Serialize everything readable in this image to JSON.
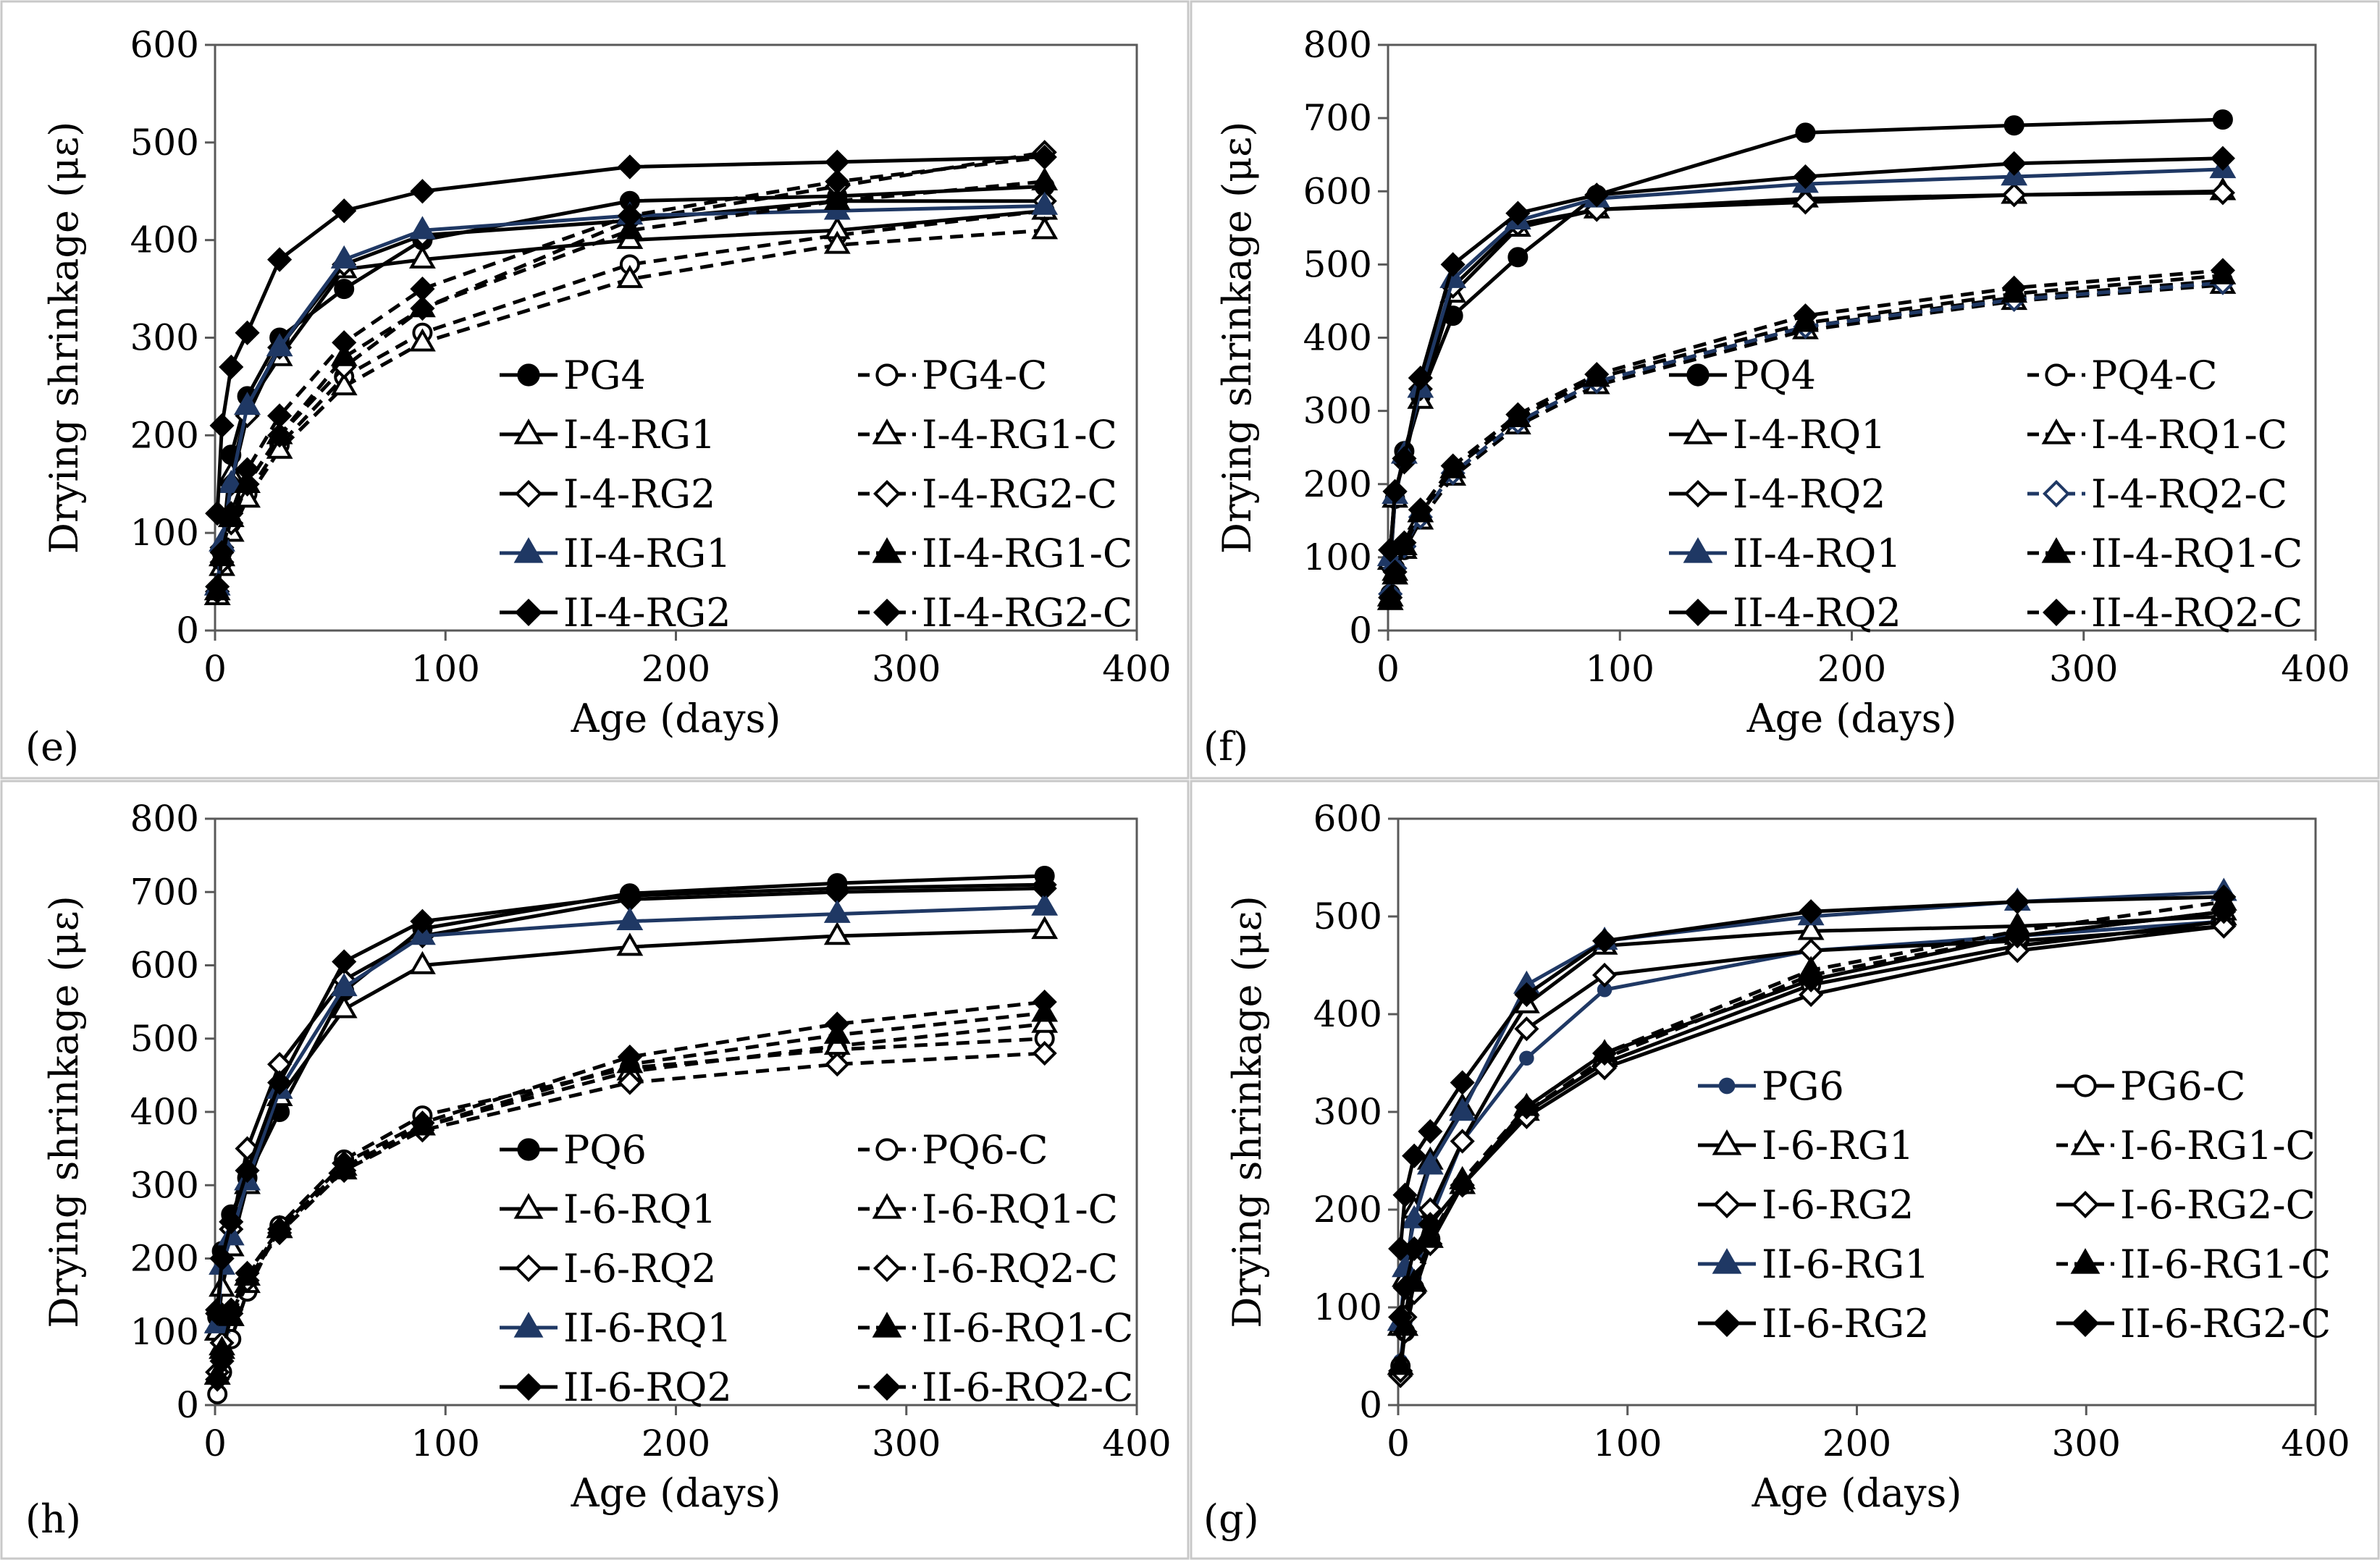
{
  "figure": {
    "panel_border_color": "#c8c8c8",
    "axis_color": "#595959",
    "navy": "#1f3864",
    "black": "#000000"
  },
  "chart_data": [
    {
      "type": "line",
      "panel_label": "(e)",
      "xlabel": "Age (days)",
      "ylabel": "Drying shrinkage (με)",
      "xlim": [
        0,
        400
      ],
      "ylim": [
        0,
        600
      ],
      "xticks": [
        "0",
        "100",
        "200",
        "300",
        "400"
      ],
      "yticks": [
        "0",
        "100",
        "200",
        "300",
        "400",
        "500",
        "600"
      ],
      "grid": false,
      "legend_position": "lower-right, inside plot",
      "x": [
        1,
        3,
        7,
        14,
        28,
        56,
        90,
        180,
        270,
        360
      ],
      "series": [
        {
          "name": "PG4",
          "marker": "circle",
          "fill": "filled",
          "dash": "solid",
          "color": "#000000",
          "values": [
            40,
            80,
            180,
            240,
            300,
            350,
            400,
            440,
            445,
            455
          ]
        },
        {
          "name": "PG4-C",
          "marker": "circle",
          "fill": "open",
          "dash": "dashed",
          "color": "#000000",
          "values": [
            40,
            70,
            110,
            140,
            190,
            260,
            305,
            375,
            405,
            430
          ]
        },
        {
          "name": "I-4-RG1",
          "marker": "triangle",
          "fill": "open",
          "dash": "solid",
          "color": "#000000",
          "values": [
            35,
            75,
            160,
            230,
            280,
            370,
            380,
            400,
            410,
            430
          ]
        },
        {
          "name": "I-4-RG1-C",
          "marker": "triangle",
          "fill": "open",
          "dash": "dashed",
          "color": "#000000",
          "values": [
            35,
            65,
            100,
            135,
            185,
            250,
            295,
            360,
            395,
            410
          ]
        },
        {
          "name": "I-4-RG2",
          "marker": "diamond",
          "fill": "open",
          "dash": "solid",
          "color": "#000000",
          "values": [
            40,
            85,
            150,
            220,
            290,
            375,
            405,
            420,
            440,
            440
          ]
        },
        {
          "name": "I-4-RG2-C",
          "marker": "diamond",
          "fill": "open",
          "dash": "dashed",
          "color": "#000000",
          "values": [
            40,
            70,
            110,
            150,
            200,
            270,
            330,
            420,
            455,
            490
          ]
        },
        {
          "name": "II-4-RG1",
          "marker": "triangle",
          "fill": "filled",
          "dash": "solid",
          "color": "#1f3864",
          "values": [
            45,
            90,
            150,
            230,
            290,
            380,
            410,
            425,
            430,
            435
          ]
        },
        {
          "name": "II-4-RG1-C",
          "marker": "triangle",
          "fill": "filled",
          "dash": "dashed",
          "color": "#000000",
          "values": [
            40,
            75,
            115,
            150,
            200,
            280,
            330,
            410,
            440,
            460
          ]
        },
        {
          "name": "II-4-RG2",
          "marker": "diamond",
          "fill": "filled",
          "dash": "solid",
          "color": "#000000",
          "values": [
            120,
            210,
            270,
            305,
            380,
            430,
            450,
            475,
            480,
            485
          ]
        },
        {
          "name": "II-4-RG2-C",
          "marker": "diamond",
          "fill": "filled",
          "dash": "dashed",
          "color": "#000000",
          "values": [
            45,
            80,
            120,
            165,
            220,
            295,
            350,
            425,
            460,
            485
          ]
        }
      ]
    },
    {
      "type": "line",
      "panel_label": "(f)",
      "xlabel": "Age (days)",
      "ylabel": "Drying shrinkage (με)",
      "xlim": [
        0,
        400
      ],
      "ylim": [
        0,
        800
      ],
      "xticks": [
        "0",
        "100",
        "200",
        "300",
        "400"
      ],
      "yticks": [
        "0",
        "100",
        "200",
        "300",
        "400",
        "500",
        "600",
        "700",
        "800"
      ],
      "grid": false,
      "legend_position": "lower-right, inside plot",
      "x": [
        1,
        3,
        7,
        14,
        28,
        56,
        90,
        180,
        270,
        360
      ],
      "series": [
        {
          "name": "PQ4",
          "marker": "circle",
          "fill": "filled",
          "dash": "solid",
          "color": "#000000",
          "values": [
            90,
            180,
            245,
            320,
            430,
            510,
            595,
            680,
            690,
            698
          ]
        },
        {
          "name": "PQ4-C",
          "marker": "circle",
          "fill": "open",
          "dash": "dashed",
          "color": "#000000",
          "values": [
            50,
            85,
            110,
            155,
            215,
            285,
            340,
            415,
            455,
            478
          ]
        },
        {
          "name": "I-4-RQ1",
          "marker": "triangle",
          "fill": "open",
          "dash": "solid",
          "color": "#000000",
          "values": [
            95,
            180,
            240,
            315,
            460,
            550,
            575,
            590,
            595,
            600
          ]
        },
        {
          "name": "I-4-RQ1-C",
          "marker": "triangle",
          "fill": "open",
          "dash": "dashed",
          "color": "#000000",
          "values": [
            45,
            80,
            110,
            150,
            210,
            280,
            335,
            410,
            450,
            472
          ]
        },
        {
          "name": "I-4-RQ2",
          "marker": "diamond",
          "fill": "open",
          "dash": "solid",
          "color": "#000000",
          "values": [
            110,
            190,
            230,
            330,
            470,
            555,
            575,
            585,
            595,
            598
          ]
        },
        {
          "name": "I-4-RQ2-C",
          "marker": "diamond",
          "fill": "open",
          "dash": "dashed",
          "color": "#1f3864",
          "values": [
            50,
            85,
            115,
            155,
            215,
            285,
            340,
            415,
            452,
            475
          ]
        },
        {
          "name": "II-4-RQ1",
          "marker": "triangle",
          "fill": "filled",
          "dash": "solid",
          "color": "#1f3864",
          "values": [
            100,
            185,
            240,
            330,
            480,
            560,
            590,
            610,
            620,
            630
          ]
        },
        {
          "name": "II-4-RQ1-C",
          "marker": "triangle",
          "fill": "filled",
          "dash": "dashed",
          "color": "#000000",
          "values": [
            40,
            75,
            115,
            160,
            220,
            290,
            345,
            420,
            460,
            485
          ]
        },
        {
          "name": "II-4-RQ2",
          "marker": "diamond",
          "fill": "filled",
          "dash": "solid",
          "color": "#000000",
          "values": [
            110,
            190,
            235,
            345,
            500,
            570,
            595,
            620,
            638,
            645
          ]
        },
        {
          "name": "II-4-RQ2-C",
          "marker": "diamond",
          "fill": "filled",
          "dash": "dashed",
          "color": "#000000",
          "values": [
            45,
            80,
            120,
            165,
            225,
            295,
            350,
            430,
            468,
            492
          ]
        }
      ]
    },
    {
      "type": "line",
      "panel_label": "(h)",
      "xlabel": "Age (days)",
      "ylabel": "Drying shrinkage (με)",
      "xlim": [
        0,
        400
      ],
      "ylim": [
        0,
        800
      ],
      "xticks": [
        "0",
        "100",
        "200",
        "300",
        "400"
      ],
      "yticks": [
        "0",
        "100",
        "200",
        "300",
        "400",
        "500",
        "600",
        "700",
        "800"
      ],
      "grid": false,
      "legend_position": "lower-right, inside plot",
      "x": [
        1,
        3,
        7,
        14,
        28,
        56,
        90,
        180,
        270,
        360
      ],
      "series": [
        {
          "name": "PQ6",
          "marker": "circle",
          "fill": "filled",
          "dash": "solid",
          "color": "#000000",
          "values": [
            120,
            210,
            260,
            310,
            400,
            565,
            650,
            698,
            712,
            722
          ]
        },
        {
          "name": "PQ6-C",
          "marker": "circle",
          "fill": "open",
          "dash": "dashed",
          "color": "#000000",
          "values": [
            15,
            45,
            90,
            155,
            245,
            335,
            395,
            460,
            485,
            500
          ]
        },
        {
          "name": "I-6-RQ1",
          "marker": "triangle",
          "fill": "open",
          "dash": "solid",
          "color": "#000000",
          "values": [
            100,
            160,
            215,
            300,
            420,
            540,
            600,
            625,
            640,
            648
          ]
        },
        {
          "name": "I-6-RQ1-C",
          "marker": "triangle",
          "fill": "open",
          "dash": "dashed",
          "color": "#000000",
          "values": [
            40,
            80,
            120,
            165,
            240,
            325,
            380,
            455,
            490,
            520
          ]
        },
        {
          "name": "I-6-RQ2",
          "marker": "diamond",
          "fill": "open",
          "dash": "solid",
          "color": "#000000",
          "values": [
            130,
            200,
            240,
            350,
            465,
            580,
            640,
            690,
            700,
            705
          ]
        },
        {
          "name": "I-6-RQ2-C",
          "marker": "diamond",
          "fill": "open",
          "dash": "dashed",
          "color": "#000000",
          "values": [
            45,
            85,
            125,
            170,
            235,
            320,
            375,
            440,
            465,
            480
          ]
        },
        {
          "name": "II-6-RQ1",
          "marker": "triangle",
          "fill": "filled",
          "dash": "solid",
          "color": "#1f3864",
          "values": [
            110,
            190,
            230,
            305,
            430,
            570,
            640,
            660,
            670,
            680
          ]
        },
        {
          "name": "II-6-RQ1-C",
          "marker": "triangle",
          "fill": "filled",
          "dash": "dashed",
          "color": "#000000",
          "values": [
            40,
            75,
            120,
            175,
            240,
            320,
            380,
            465,
            505,
            535
          ]
        },
        {
          "name": "II-6-RQ2",
          "marker": "diamond",
          "fill": "filled",
          "dash": "solid",
          "color": "#000000",
          "values": [
            125,
            200,
            250,
            320,
            440,
            605,
            660,
            695,
            705,
            710
          ]
        },
        {
          "name": "II-6-RQ2-C",
          "marker": "diamond",
          "fill": "filled",
          "dash": "dashed",
          "color": "#000000",
          "values": [
            35,
            60,
            130,
            180,
            240,
            330,
            385,
            475,
            520,
            550
          ]
        }
      ]
    },
    {
      "type": "line",
      "panel_label": "(g)",
      "xlabel": "Age (days)",
      "ylabel": "Drying shrinkage (με)",
      "xlim": [
        0,
        400
      ],
      "ylim": [
        0,
        600
      ],
      "xticks": [
        "0",
        "100",
        "200",
        "300",
        "400"
      ],
      "yticks": [
        "0",
        "100",
        "200",
        "300",
        "400",
        "500",
        "600"
      ],
      "grid": false,
      "legend_position": "lower-right, inside plot",
      "x": [
        1,
        3,
        7,
        14,
        28,
        56,
        90,
        180,
        270,
        360
      ],
      "series": [
        {
          "name": "PG6",
          "marker": "circle-small",
          "fill": "filled",
          "dash": "solid",
          "color": "#1f3864",
          "values": [
            45,
            85,
            130,
            190,
            270,
            355,
            425,
            465,
            480,
            495
          ]
        },
        {
          "name": "PG6-C",
          "marker": "circle",
          "fill": "open",
          "dash": "solid",
          "color": "#000000",
          "values": [
            40,
            75,
            120,
            170,
            225,
            300,
            350,
            430,
            470,
            495
          ]
        },
        {
          "name": "I-6-RG1",
          "marker": "triangle",
          "fill": "open",
          "dash": "solid",
          "color": "#000000",
          "values": [
            80,
            130,
            200,
            250,
            305,
            410,
            470,
            485,
            490,
            500
          ]
        },
        {
          "name": "I-6-RG1-C",
          "marker": "triangle",
          "fill": "open",
          "dash": "dashed",
          "color": "#000000",
          "values": [
            40,
            80,
            125,
            170,
            225,
            300,
            355,
            440,
            480,
            505
          ]
        },
        {
          "name": "I-6-RG2",
          "marker": "diamond",
          "fill": "open",
          "dash": "solid",
          "color": "#000000",
          "values": [
            30,
            90,
            145,
            200,
            270,
            385,
            440,
            465,
            475,
            490
          ]
        },
        {
          "name": "I-6-RG2-C",
          "marker": "diamond",
          "fill": "open",
          "dash": "solid",
          "color": "#000000",
          "values": [
            35,
            75,
            115,
            165,
            225,
            295,
            345,
            420,
            465,
            490
          ]
        },
        {
          "name": "II-6-RG1",
          "marker": "triangle",
          "fill": "filled",
          "dash": "solid",
          "color": "#1f3864",
          "values": [
            85,
            140,
            190,
            245,
            300,
            430,
            475,
            500,
            515,
            525
          ]
        },
        {
          "name": "II-6-RG1-C",
          "marker": "triangle",
          "fill": "filled",
          "dash": "dashed",
          "color": "#000000",
          "values": [
            40,
            80,
            125,
            170,
            230,
            305,
            360,
            445,
            485,
            515
          ]
        },
        {
          "name": "II-6-RG2",
          "marker": "diamond",
          "fill": "filled",
          "dash": "solid",
          "color": "#000000",
          "values": [
            160,
            215,
            255,
            280,
            330,
            420,
            475,
            505,
            515,
            520
          ]
        },
        {
          "name": "II-6-RG2-C",
          "marker": "diamond",
          "fill": "filled",
          "dash": "solid",
          "color": "#000000",
          "values": [
            90,
            120,
            160,
            185,
            225,
            305,
            360,
            435,
            480,
            505
          ]
        }
      ]
    }
  ]
}
